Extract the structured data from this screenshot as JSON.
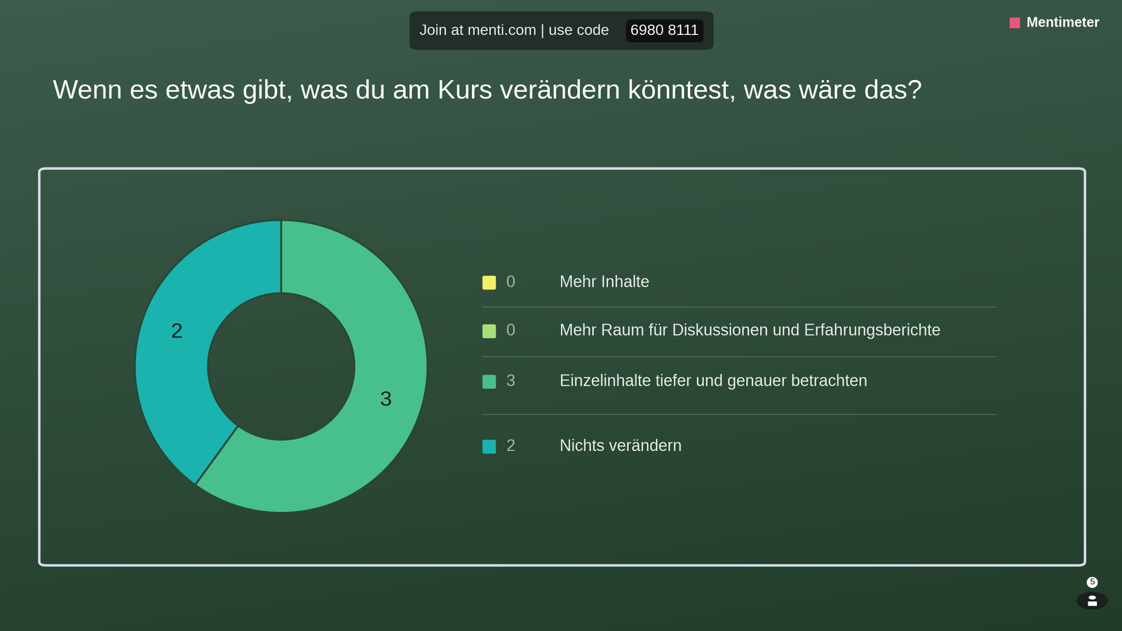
{
  "header": {
    "join_text": "Join at menti.com | use code",
    "code": "6980 8111",
    "brand": "Mentimeter",
    "participants": 5
  },
  "chart_data": {
    "type": "donut",
    "title": "Wenn es etwas gibt, was du am Kurs verändern könntest, was wäre das?",
    "categories": [
      "Mehr Inhalte",
      "Mehr Raum für Diskussionen und Erfahrungsberichte",
      "Einzelinhalte tiefer und genauer betrachten",
      "Nichts verändern"
    ],
    "values": [
      0,
      0,
      3,
      2
    ],
    "colors": [
      "#f5ef6c",
      "#a8e07c",
      "#47bf8e",
      "#1ab3ae"
    ],
    "data_labels": true,
    "legend": "right"
  }
}
